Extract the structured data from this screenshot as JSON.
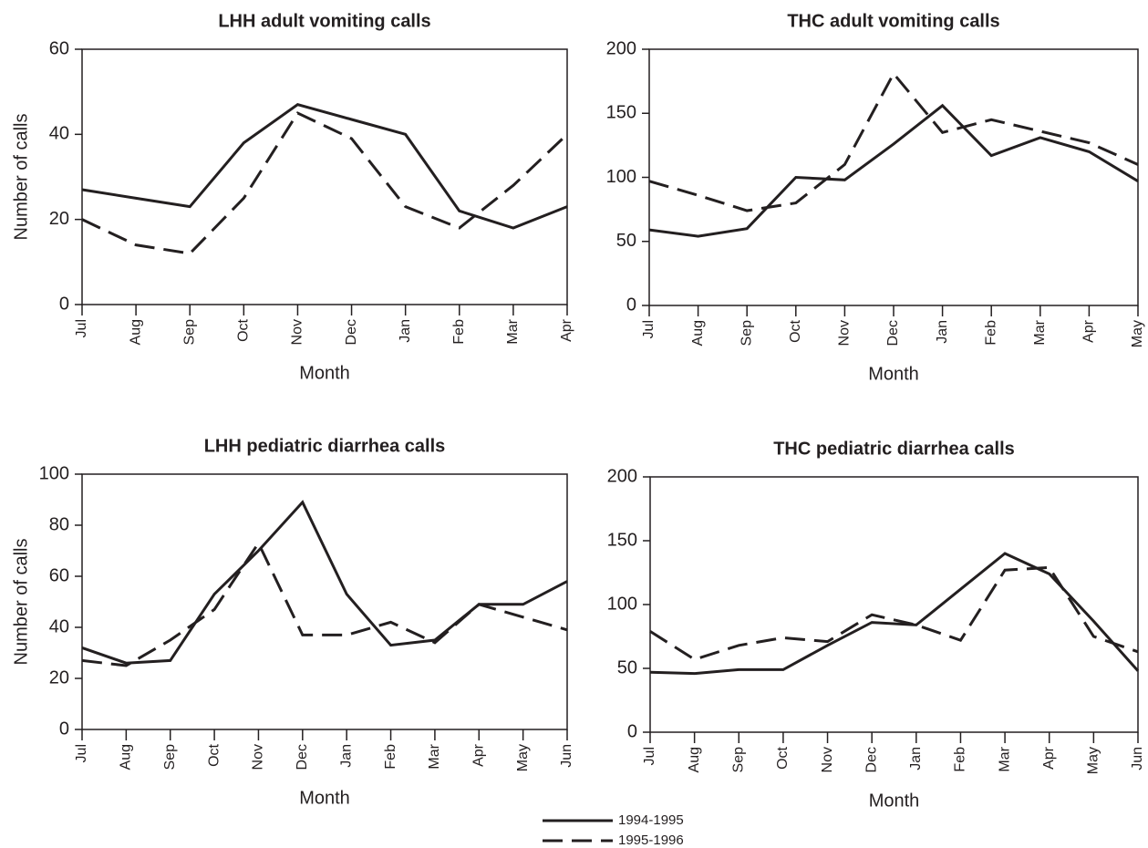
{
  "chart_data": [
    {
      "type": "line",
      "title": "LHH adult vomiting calls",
      "ylabel": "Number of calls",
      "xlabel": "Month",
      "categories": [
        "Jul",
        "Aug",
        "Sep",
        "Oct",
        "Nov",
        "Dec",
        "Jan",
        "Feb",
        "Mar",
        "Apr"
      ],
      "ylim": [
        0,
        60
      ],
      "yticks": [
        0,
        20,
        40,
        60
      ],
      "series": [
        {
          "style": "solid",
          "color": "#231f20",
          "values": [
            27,
            25,
            23,
            38,
            47,
            43.5,
            40,
            22,
            18,
            23
          ]
        },
        {
          "style": "dashed",
          "color": "#231f20",
          "values": [
            20,
            14,
            12,
            25,
            45,
            39,
            23,
            18,
            28,
            40
          ]
        }
      ]
    },
    {
      "type": "line",
      "title": "THC adult vomiting calls",
      "xlabel": "Month",
      "categories": [
        "Jul",
        "Aug",
        "Sep",
        "Oct",
        "Nov",
        "Dec",
        "Jan",
        "Feb",
        "Mar",
        "Apr",
        "May"
      ],
      "ylim": [
        0,
        200
      ],
      "yticks": [
        0,
        50,
        100,
        150,
        200
      ],
      "series": [
        {
          "style": "solid",
          "color": "#231f20",
          "values": [
            59,
            54,
            60,
            100,
            98,
            126,
            156,
            117,
            131,
            120,
            97
          ]
        },
        {
          "style": "dashed",
          "color": "#231f20",
          "values": [
            97,
            86,
            74,
            80,
            110,
            181,
            135,
            145,
            136,
            127,
            110
          ]
        }
      ]
    },
    {
      "type": "line",
      "title": "LHH pediatric diarrhea calls",
      "ylabel": "Number of calls",
      "xlabel": "Month",
      "categories": [
        "Jul",
        "Aug",
        "Sep",
        "Oct",
        "Nov",
        "Dec",
        "Jan",
        "Feb",
        "Mar",
        "Apr",
        "May",
        "Jun"
      ],
      "ylim": [
        0,
        100
      ],
      "yticks": [
        0,
        20,
        40,
        60,
        80,
        100
      ],
      "series": [
        {
          "style": "solid",
          "color": "#231f20",
          "values": [
            32,
            26,
            27,
            53,
            70,
            89,
            53,
            33,
            35,
            49,
            49,
            58
          ]
        },
        {
          "style": "dashed",
          "color": "#231f20",
          "values": [
            27,
            25,
            35,
            47,
            73,
            37,
            37,
            42,
            34,
            49,
            44,
            39
          ]
        }
      ]
    },
    {
      "type": "line",
      "title": "THC pediatric diarrhea calls",
      "xlabel": "Month",
      "categories": [
        "Jul",
        "Aug",
        "Sep",
        "Oct",
        "Nov",
        "Dec",
        "Jan",
        "Feb",
        "Mar",
        "Apr",
        "May",
        "Jun"
      ],
      "ylim": [
        0,
        200
      ],
      "yticks": [
        0,
        50,
        100,
        150,
        200
      ],
      "series": [
        {
          "style": "solid",
          "color": "#231f20",
          "values": [
            47,
            46,
            49,
            49,
            68,
            86,
            84,
            112,
            140,
            124,
            87,
            48
          ]
        },
        {
          "style": "dashed",
          "color": "#231f20",
          "values": [
            79,
            57,
            68,
            74,
            71,
            92,
            84,
            72,
            127,
            129,
            75,
            63
          ]
        }
      ]
    }
  ],
  "legend": [
    {
      "label": "1994-1995",
      "style": "solid"
    },
    {
      "label": "1995-1996",
      "style": "dashed"
    }
  ]
}
